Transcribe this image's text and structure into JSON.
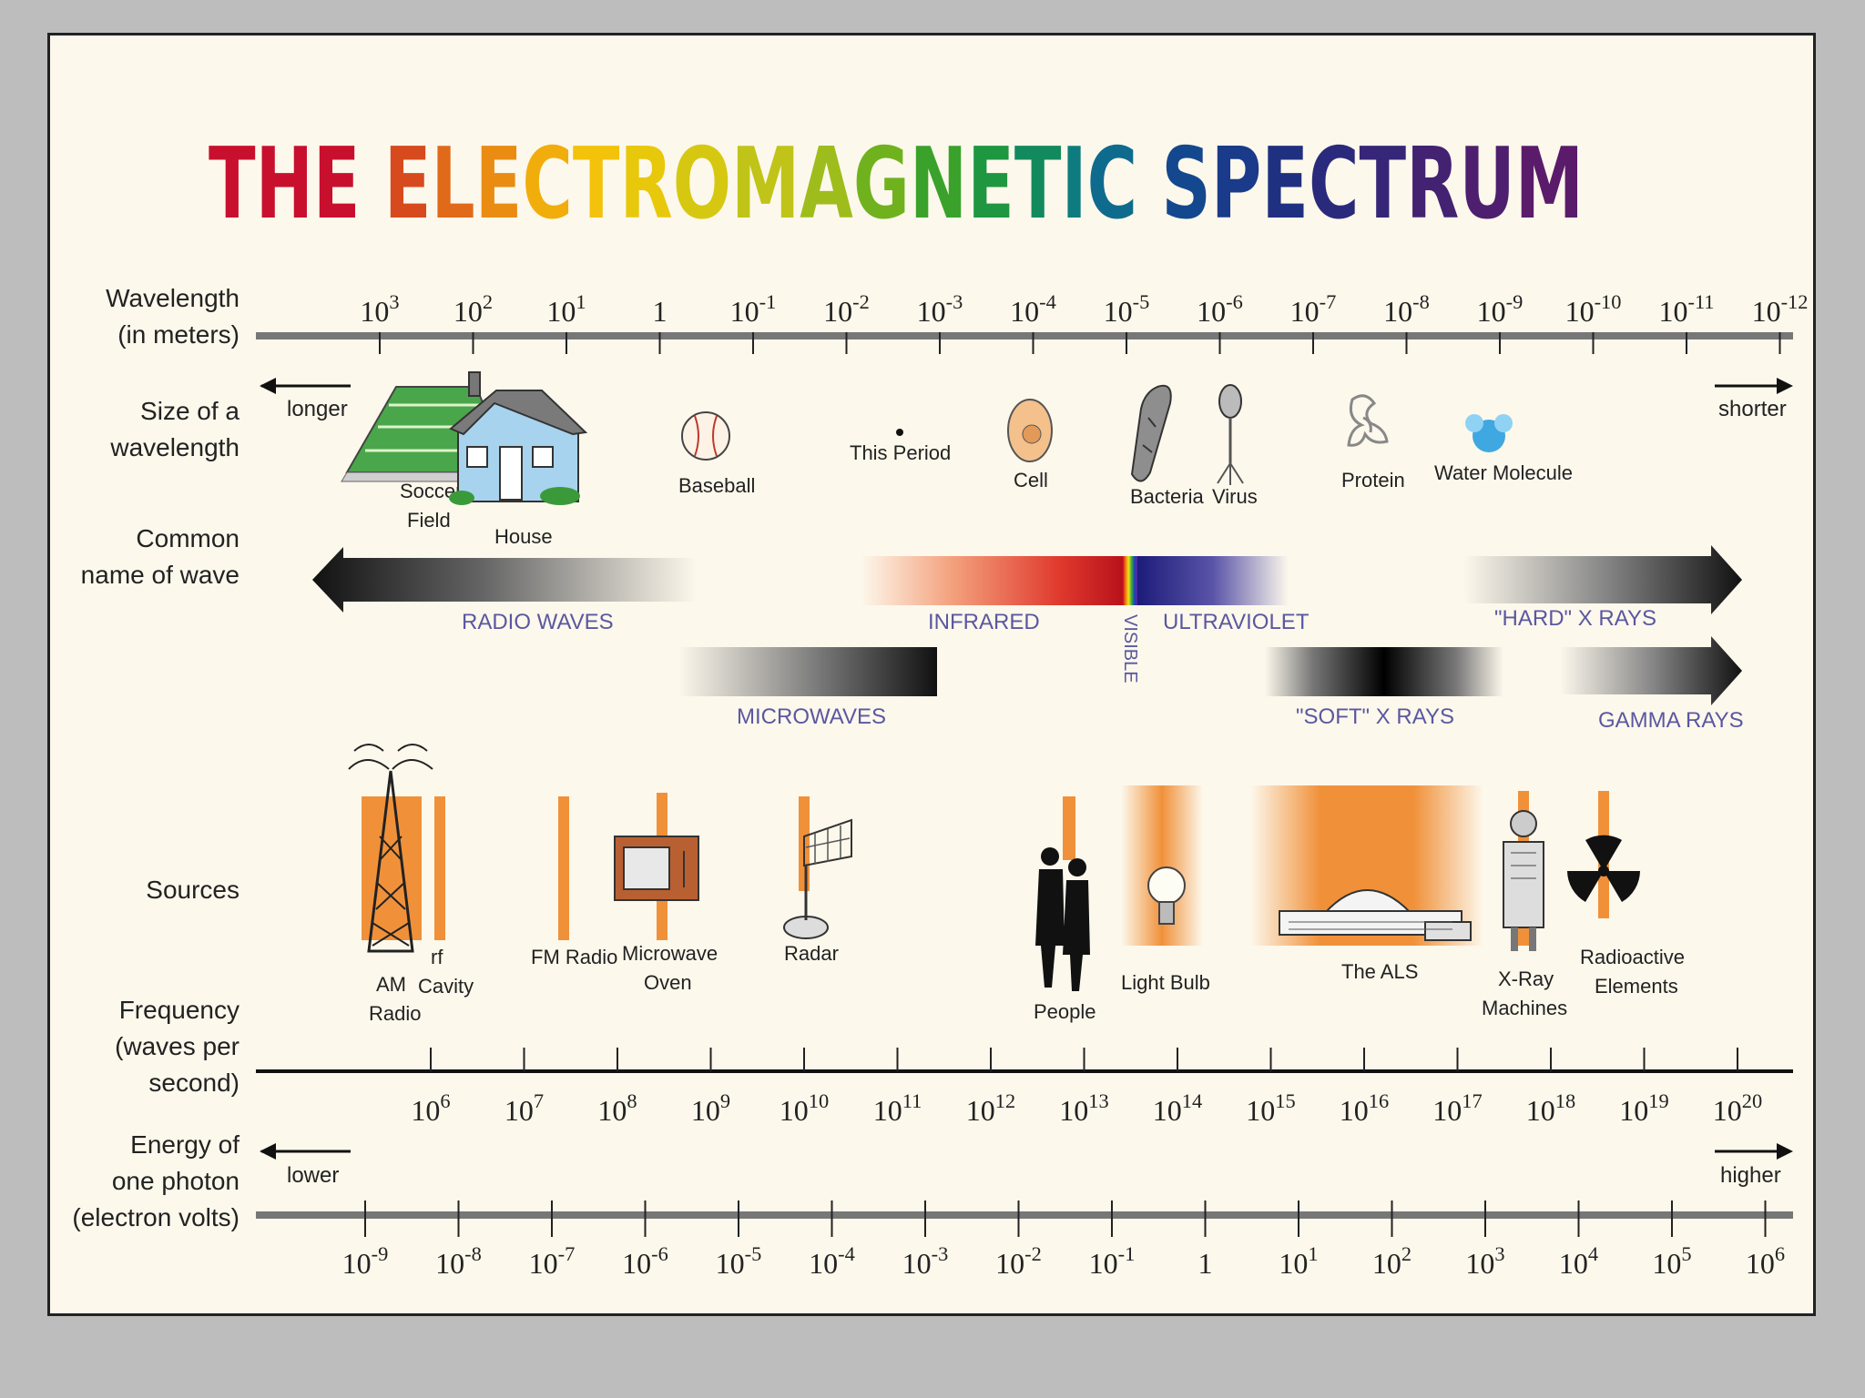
{
  "title": {
    "letters": [
      {
        "ch": "T",
        "color": "#c8102e"
      },
      {
        "ch": "H",
        "color": "#c8102e"
      },
      {
        "ch": "E",
        "color": "#c8102e"
      },
      {
        "ch": " ",
        "color": "#000000"
      },
      {
        "ch": "E",
        "color": "#d64a1e"
      },
      {
        "ch": "L",
        "color": "#e06a1a"
      },
      {
        "ch": "E",
        "color": "#ea8c12"
      },
      {
        "ch": "C",
        "color": "#f1ad0c"
      },
      {
        "ch": "T",
        "color": "#f3c20a"
      },
      {
        "ch": "R",
        "color": "#e8c80a"
      },
      {
        "ch": "O",
        "color": "#d6c810"
      },
      {
        "ch": "M",
        "color": "#c0c418"
      },
      {
        "ch": "A",
        "color": "#9ebd1c"
      },
      {
        "ch": "G",
        "color": "#6fb21e"
      },
      {
        "ch": "N",
        "color": "#3aa22a"
      },
      {
        "ch": "E",
        "color": "#1f9640"
      },
      {
        "ch": "T",
        "color": "#128a5e"
      },
      {
        "ch": "I",
        "color": "#0e7c7e"
      },
      {
        "ch": "C",
        "color": "#0f6b8e"
      },
      {
        "ch": " ",
        "color": "#000000"
      },
      {
        "ch": "S",
        "color": "#14488e"
      },
      {
        "ch": "P",
        "color": "#1a3a8a"
      },
      {
        "ch": "E",
        "color": "#203080"
      },
      {
        "ch": "C",
        "color": "#2a2a7c"
      },
      {
        "ch": "T",
        "color": "#362677"
      },
      {
        "ch": "R",
        "color": "#432272"
      },
      {
        "ch": "U",
        "color": "#4e1f6e"
      },
      {
        "ch": "M",
        "color": "#5a1c6a"
      }
    ]
  },
  "rows": {
    "wavelength": [
      "Wavelength",
      "(in meters)"
    ],
    "size": [
      "Size of a",
      "wavelength"
    ],
    "common": [
      "Common",
      "name of wave"
    ],
    "sources": [
      "Sources"
    ],
    "frequency": [
      "Frequency",
      "(waves per",
      "second)"
    ],
    "energy": [
      "Energy of",
      "one photon",
      "(electron volts)"
    ]
  },
  "wavelength_ticks": [
    {
      "base": "10",
      "exp": "3"
    },
    {
      "base": "10",
      "exp": "2"
    },
    {
      "base": "10",
      "exp": "1"
    },
    {
      "base": "1",
      "exp": ""
    },
    {
      "base": "10",
      "exp": "-1"
    },
    {
      "base": "10",
      "exp": "-2"
    },
    {
      "base": "10",
      "exp": "-3"
    },
    {
      "base": "10",
      "exp": "-4"
    },
    {
      "base": "10",
      "exp": "-5"
    },
    {
      "base": "10",
      "exp": "-6"
    },
    {
      "base": "10",
      "exp": "-7"
    },
    {
      "base": "10",
      "exp": "-8"
    },
    {
      "base": "10",
      "exp": "-9"
    },
    {
      "base": "10",
      "exp": "-10"
    },
    {
      "base": "10",
      "exp": "-11"
    },
    {
      "base": "10",
      "exp": "-12"
    }
  ],
  "frequency_ticks": [
    {
      "base": "10",
      "exp": "6"
    },
    {
      "base": "10",
      "exp": "7"
    },
    {
      "base": "10",
      "exp": "8"
    },
    {
      "base": "10",
      "exp": "9"
    },
    {
      "base": "10",
      "exp": "10"
    },
    {
      "base": "10",
      "exp": "11"
    },
    {
      "base": "10",
      "exp": "12"
    },
    {
      "base": "10",
      "exp": "13"
    },
    {
      "base": "10",
      "exp": "14"
    },
    {
      "base": "10",
      "exp": "15"
    },
    {
      "base": "10",
      "exp": "16"
    },
    {
      "base": "10",
      "exp": "17"
    },
    {
      "base": "10",
      "exp": "18"
    },
    {
      "base": "10",
      "exp": "19"
    },
    {
      "base": "10",
      "exp": "20"
    }
  ],
  "energy_ticks": [
    {
      "base": "10",
      "exp": "-9"
    },
    {
      "base": "10",
      "exp": "-8"
    },
    {
      "base": "10",
      "exp": "-7"
    },
    {
      "base": "10",
      "exp": "-6"
    },
    {
      "base": "10",
      "exp": "-5"
    },
    {
      "base": "10",
      "exp": "-4"
    },
    {
      "base": "10",
      "exp": "-3"
    },
    {
      "base": "10",
      "exp": "-2"
    },
    {
      "base": "10",
      "exp": "-1"
    },
    {
      "base": "1",
      "exp": ""
    },
    {
      "base": "10",
      "exp": "1"
    },
    {
      "base": "10",
      "exp": "2"
    },
    {
      "base": "10",
      "exp": "3"
    },
    {
      "base": "10",
      "exp": "4"
    },
    {
      "base": "10",
      "exp": "5"
    },
    {
      "base": "10",
      "exp": "6"
    }
  ],
  "arrows": {
    "longer": "longer",
    "shorter": "shorter",
    "lower": "lower",
    "higher": "higher"
  },
  "sizes": {
    "soccer": [
      "Soccer",
      "Field"
    ],
    "house": "House",
    "baseball": "Baseball",
    "period": "This Period",
    "cell": "Cell",
    "bacteria": "Bacteria",
    "virus": "Virus",
    "protein": "Protein",
    "water": "Water Molecule"
  },
  "waves": {
    "radio": "RADIO WAVES",
    "microwaves": "MICROWAVES",
    "infrared": "INFRARED",
    "visible": "VISIBLE",
    "ultraviolet": "ULTRAVIOLET",
    "soft_xrays": "\"SOFT\" X RAYS",
    "hard_xrays": "\"HARD\" X RAYS",
    "gamma": "GAMMA RAYS"
  },
  "sources": {
    "am_radio": [
      "AM",
      "Radio"
    ],
    "rf_cavity": [
      "rf",
      "Cavity"
    ],
    "fm_radio": "FM Radio",
    "microwave_oven": [
      "Microwave",
      "Oven"
    ],
    "radar": "Radar",
    "people": "People",
    "light_bulb": "Light Bulb",
    "als": "The ALS",
    "xray_machines": [
      "X-Ray",
      "Machines"
    ],
    "radioactive": [
      "Radioactive",
      "Elements"
    ]
  },
  "colors": {
    "source_orange": "#f0913a",
    "wave_text": "#5a58a0",
    "poster_bg": "#fdf8ec"
  }
}
